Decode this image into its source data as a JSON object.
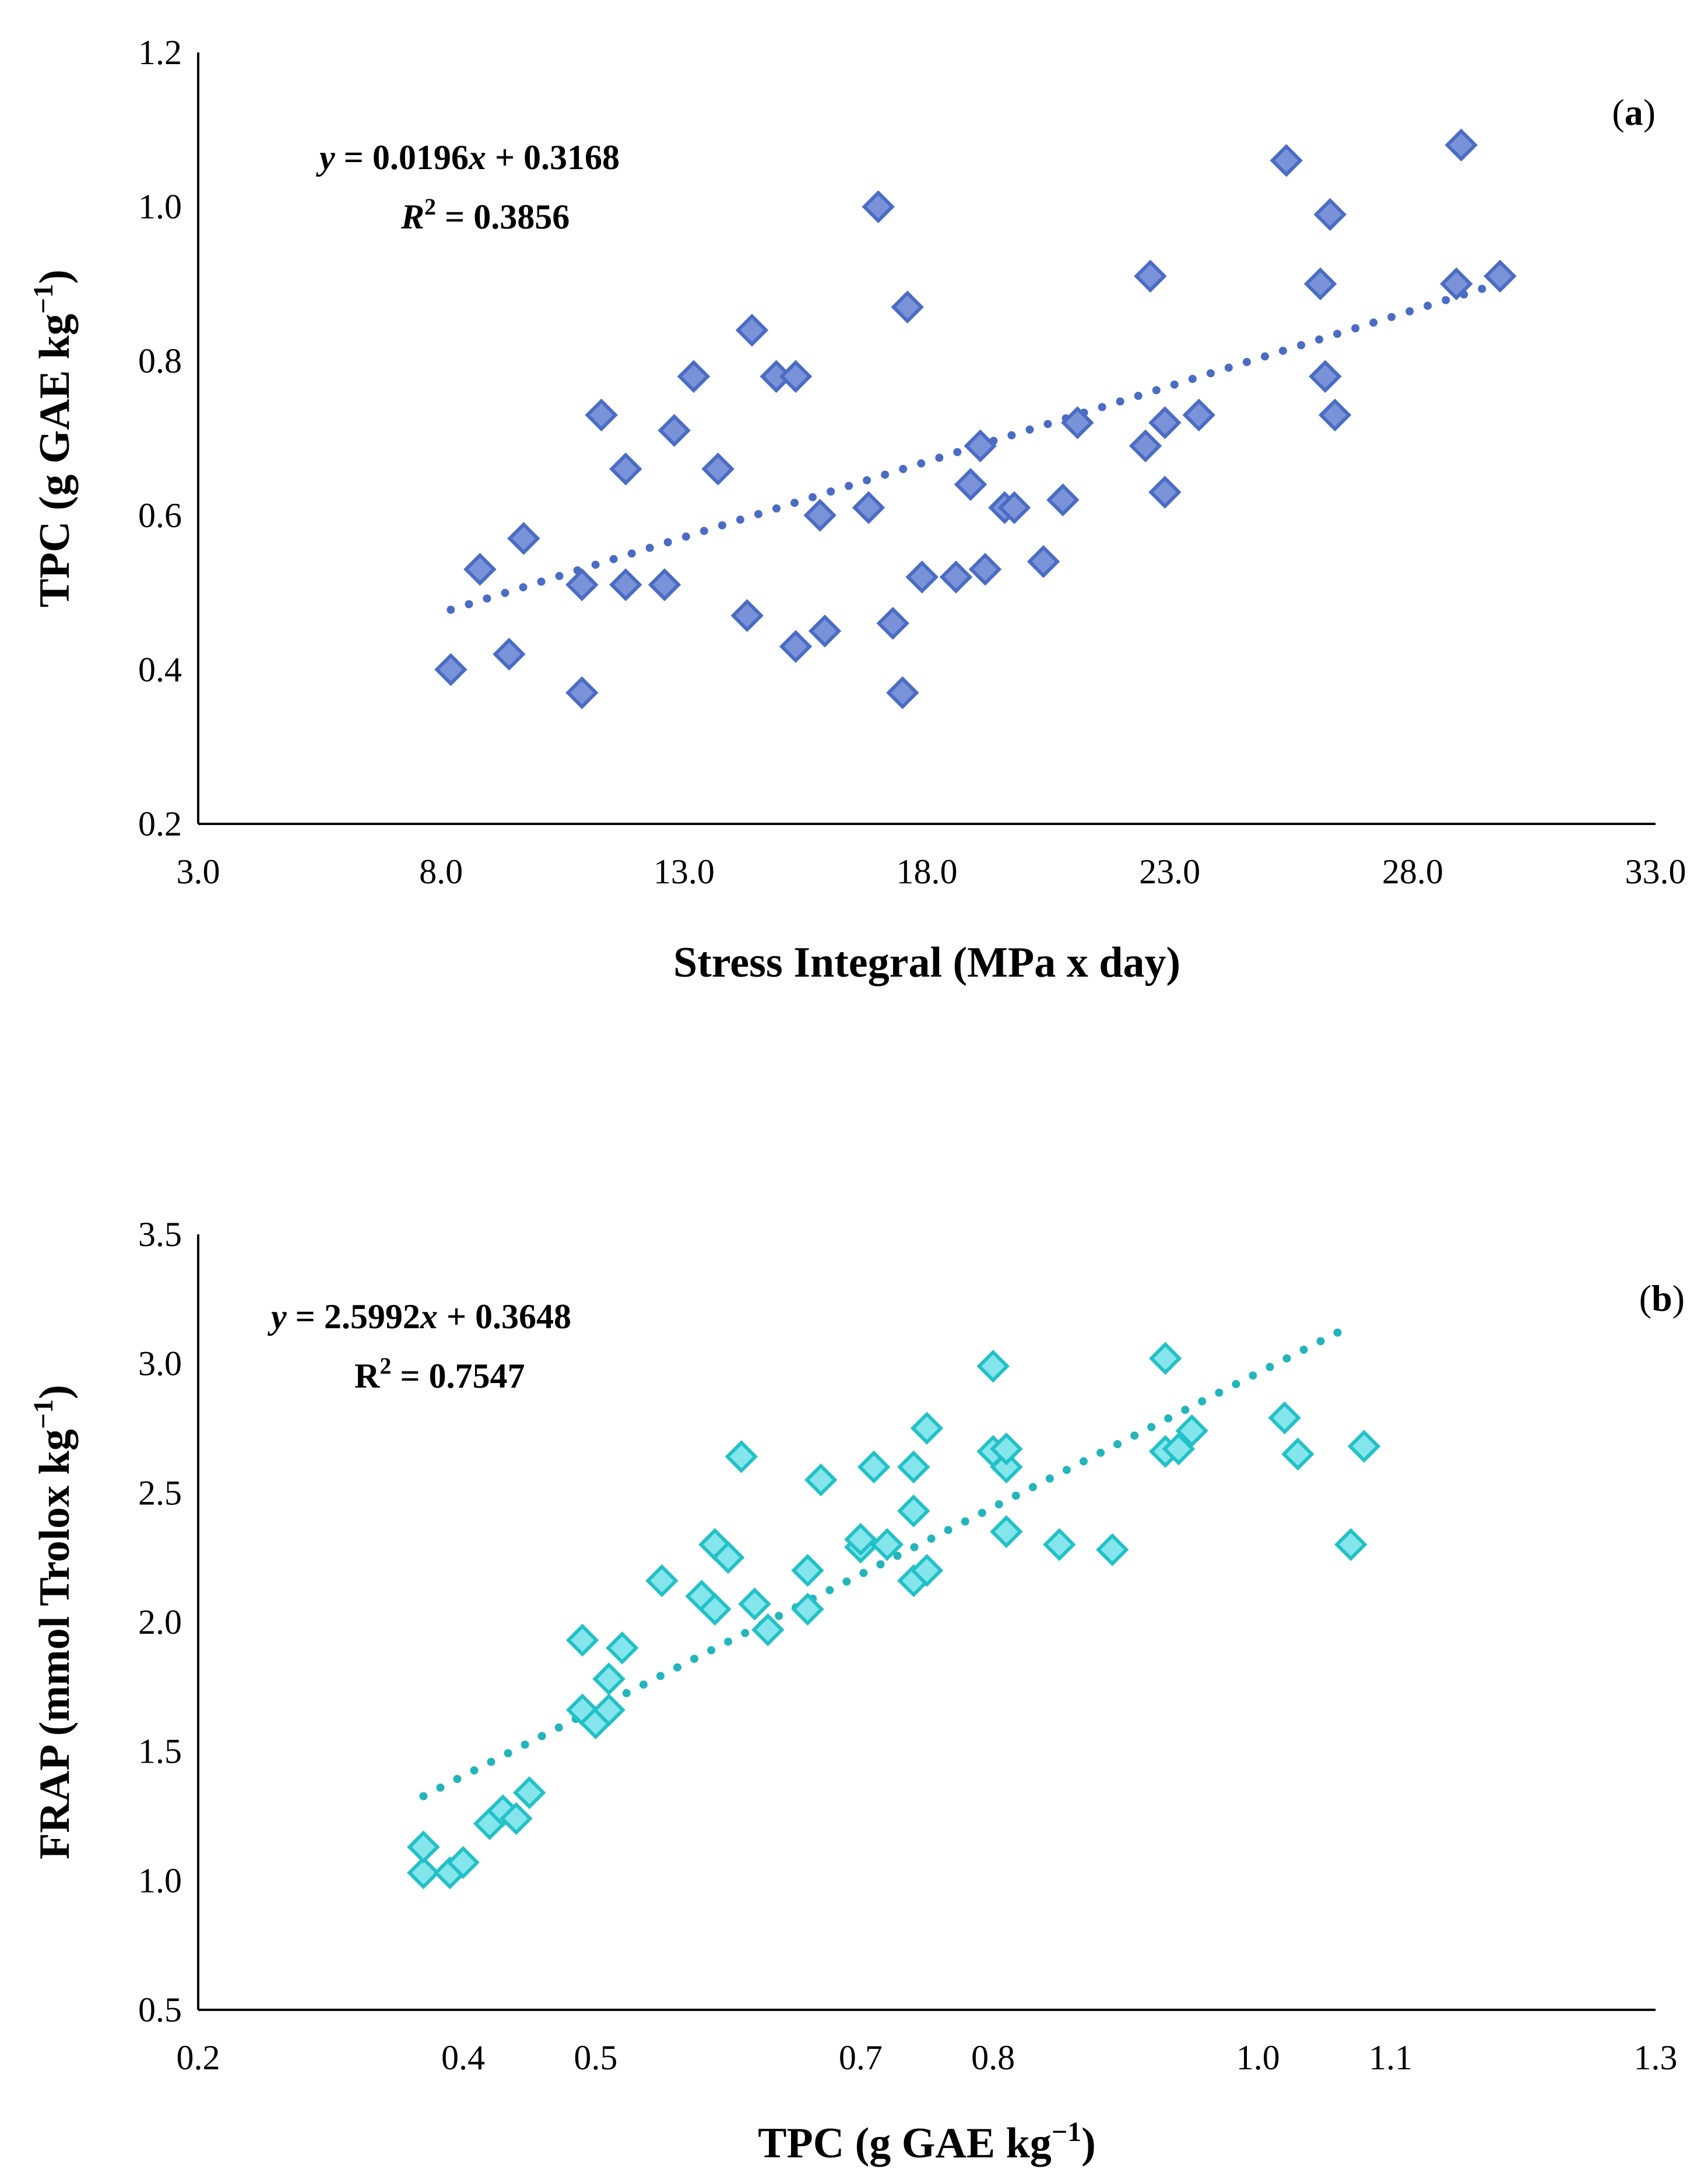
{
  "chart_data": [
    {
      "type": "scatter",
      "panel": "(a)",
      "xlabel": "Stress Integral (MPa x day)",
      "ylabel": "TPC (g GAE kg",
      "ylabel_sup": "−1",
      "ylabel_close": ")",
      "xlim": [
        3.0,
        33.0
      ],
      "ylim": [
        0.2,
        1.2
      ],
      "xticks": [
        3.0,
        8.0,
        13.0,
        18.0,
        23.0,
        28.0,
        33.0
      ],
      "yticks": [
        0.2,
        0.4,
        0.6,
        0.8,
        1.0,
        1.2
      ],
      "xtick_labels": [
        "3.0",
        "8.0",
        "13.0",
        "18.0",
        "23.0",
        "28.0",
        "33.0"
      ],
      "ytick_labels": [
        "0.2",
        "0.4",
        "0.6",
        "0.8",
        "1.0",
        "1.2"
      ],
      "equation": {
        "y": "y",
        "mid": " = 0.0196",
        "x": "x",
        "end": " + 0.3168"
      },
      "r2": {
        "r": "R",
        "sup": "2",
        "value": " = 0.3856"
      },
      "trendline": {
        "slope": 0.0196,
        "intercept": 0.3168,
        "x_range": [
          8.2,
          29.8
        ]
      },
      "colors": {
        "marker_fill": "#7a93d8",
        "marker_stroke": "#4a6cc4",
        "trend": "#4a6cc4"
      },
      "x": [
        8.2,
        8.8,
        9.4,
        9.7,
        10.9,
        10.9,
        11.3,
        11.8,
        11.8,
        12.6,
        12.8,
        13.2,
        13.7,
        14.3,
        14.4,
        14.9,
        15.3,
        15.3,
        15.8,
        15.9,
        16.8,
        17.0,
        17.3,
        17.5,
        17.6,
        17.9,
        18.6,
        18.9,
        19.1,
        19.2,
        19.6,
        19.8,
        20.4,
        20.8,
        21.1,
        22.5,
        22.6,
        22.9,
        22.9,
        23.6,
        25.4,
        26.1,
        26.2,
        26.3,
        26.4,
        28.9,
        29.0,
        29.8
      ],
      "y": [
        0.4,
        0.53,
        0.42,
        0.57,
        0.51,
        0.37,
        0.73,
        0.51,
        0.66,
        0.51,
        0.71,
        0.78,
        0.66,
        0.47,
        0.84,
        0.78,
        0.43,
        0.78,
        0.6,
        0.45,
        0.61,
        1.0,
        0.46,
        0.37,
        0.87,
        0.52,
        0.52,
        0.64,
        0.69,
        0.53,
        0.61,
        0.61,
        0.54,
        0.62,
        0.72,
        0.69,
        0.91,
        0.72,
        0.63,
        0.73,
        1.06,
        0.9,
        0.78,
        0.99,
        0.73,
        0.9,
        1.08,
        0.91
      ]
    },
    {
      "type": "scatter",
      "panel": "(b)",
      "xlabel": "TPC (g GAE kg",
      "xlabel_sup": "−1",
      "xlabel_close": ")",
      "ylabel": "FRAP (mmol Trolox kg",
      "ylabel_sup": "−1",
      "ylabel_close": ")",
      "xlim": [
        0.2,
        1.3
      ],
      "ylim": [
        0.5,
        3.5
      ],
      "xticks": [
        0.2,
        0.4,
        0.5,
        0.7,
        0.8,
        1.0,
        1.1,
        1.3
      ],
      "yticks": [
        0.5,
        1.0,
        1.5,
        2.0,
        2.5,
        3.0,
        3.5
      ],
      "xtick_labels": [
        "0.2",
        "0.4",
        "0.5",
        "0.7",
        "0.8",
        "1.0",
        "1.1",
        "1.3"
      ],
      "ytick_labels": [
        "0.5",
        "1.0",
        "1.5",
        "2.0",
        "2.5",
        "3.0",
        "3.5"
      ],
      "equation": {
        "y": "y",
        "mid": " = 2.5992",
        "x": "x",
        "end": " + 0.3648"
      },
      "r2": {
        "r": "R",
        "sup": "2",
        "value": " = 0.7547"
      },
      "trendline": {
        "slope": 2.5992,
        "intercept": 0.3648,
        "x_range": [
          0.37,
          1.06
        ]
      },
      "colors": {
        "marker_fill": "#84e6ec",
        "marker_stroke": "#22c1c7",
        "trend": "#22b5bb"
      },
      "x": [
        0.37,
        0.37,
        0.39,
        0.4,
        0.42,
        0.43,
        0.44,
        0.45,
        0.49,
        0.49,
        0.5,
        0.51,
        0.51,
        0.52,
        0.55,
        0.58,
        0.59,
        0.59,
        0.6,
        0.61,
        0.62,
        0.63,
        0.66,
        0.66,
        0.67,
        0.7,
        0.7,
        0.71,
        0.72,
        0.74,
        0.74,
        0.74,
        0.75,
        0.75,
        0.8,
        0.8,
        0.81,
        0.81,
        0.81,
        0.85,
        0.89,
        0.93,
        0.93,
        0.94,
        0.95,
        1.02,
        1.03,
        1.07,
        1.08
      ],
      "y": [
        1.03,
        1.13,
        1.03,
        1.07,
        1.22,
        1.27,
        1.24,
        1.34,
        1.93,
        1.66,
        1.61,
        1.78,
        1.66,
        1.9,
        2.16,
        2.1,
        2.05,
        2.3,
        2.25,
        2.64,
        2.07,
        1.97,
        2.05,
        2.2,
        2.55,
        2.29,
        2.32,
        2.6,
        2.3,
        2.16,
        2.43,
        2.6,
        2.75,
        2.2,
        2.99,
        2.66,
        2.35,
        2.6,
        2.67,
        2.3,
        2.28,
        2.66,
        3.02,
        2.67,
        2.74,
        2.79,
        2.65,
        2.3,
        2.68
      ]
    }
  ]
}
